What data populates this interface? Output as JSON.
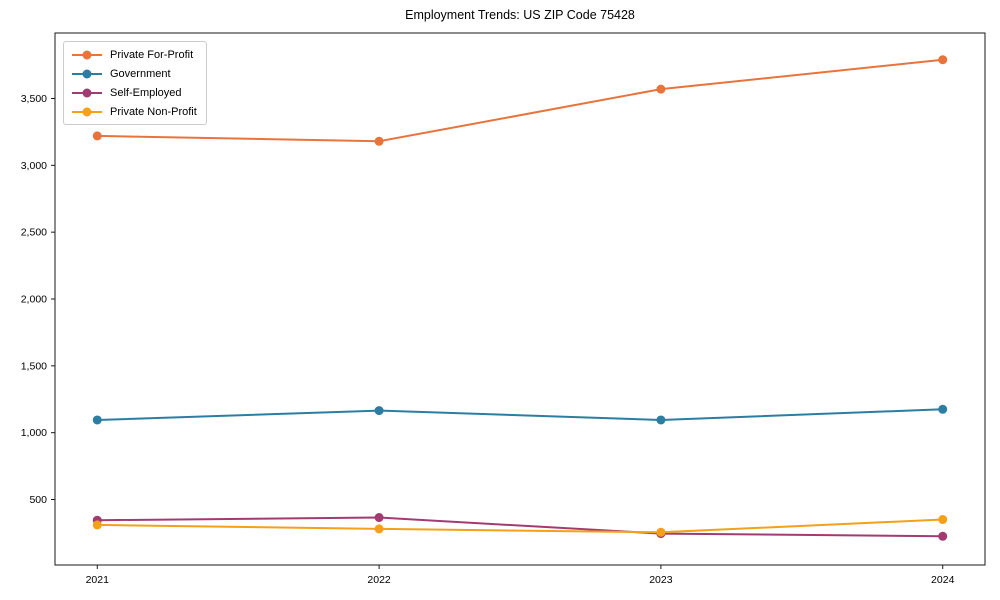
{
  "figure": {
    "background": "#ffffff",
    "spine_color": "#1a1a1a"
  },
  "chart_data": {
    "type": "line",
    "title": "Employment Trends: US ZIP Code 75428",
    "xlabel": "",
    "ylabel": "",
    "x": [
      2021,
      2022,
      2023,
      2024
    ],
    "xtick_labels": [
      "2021",
      "2022",
      "2023",
      "2024"
    ],
    "yticks": [
      500,
      1000,
      1500,
      2000,
      2500,
      3000,
      3500
    ],
    "ytick_labels": [
      "500",
      "1,000",
      "1,500",
      "2,000",
      "2,500",
      "3,000",
      "3,500"
    ],
    "ylim": [
      10,
      3990
    ],
    "grid": false,
    "legend_position": "upper-left",
    "marker": "circle",
    "series": [
      {
        "name": "Private For-Profit",
        "color": "#E8743B",
        "values": [
          3220,
          3180,
          3570,
          3790
        ]
      },
      {
        "name": "Government",
        "color": "#2B7EA1",
        "values": [
          1095,
          1165,
          1095,
          1175
        ]
      },
      {
        "name": "Self-Employed",
        "color": "#A23B72",
        "values": [
          345,
          365,
          245,
          225
        ]
      },
      {
        "name": "Private Non-Profit",
        "color": "#F4A018",
        "values": [
          310,
          280,
          255,
          350
        ]
      }
    ]
  }
}
